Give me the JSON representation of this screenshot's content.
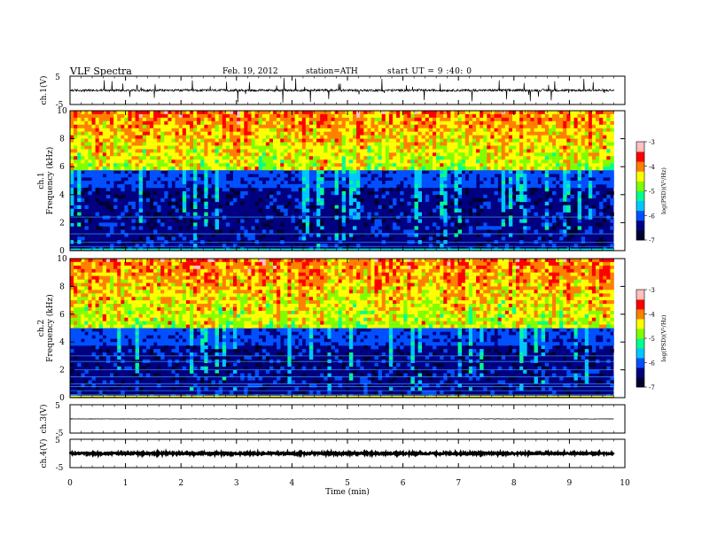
{
  "header": {
    "title": "VLF Spectra",
    "date": "Feb. 19, 2012",
    "station": "station=ATH",
    "start": "start UT = 9 :40: 0"
  },
  "colors": {
    "cmap": [
      "#000030",
      "#000080",
      "#0050ff",
      "#00c8ff",
      "#00ff90",
      "#80ff00",
      "#ffff00",
      "#ff8000",
      "#ff0000",
      "#ffc0c0"
    ],
    "trace": "#000000",
    "axis": "#000000"
  },
  "chart_data": [
    {
      "id": "ch1-waveform",
      "type": "line",
      "ylabel": "ch.1(V)",
      "ylim": [
        -5,
        5
      ],
      "yticks": [
        "5",
        "-5"
      ],
      "baseline": 0,
      "noise_amplitude": 0.4,
      "spikes": true
    },
    {
      "id": "ch1-spectrogram",
      "type": "heatmap",
      "ylabel_top": "ch.1",
      "ylabel": "Frequency (kHz)",
      "ylim": [
        0,
        10
      ],
      "yticks": [
        "0",
        "2",
        "4",
        "6",
        "8",
        "10"
      ],
      "colorbar": {
        "label": "log(PSD)(V²/Hz)",
        "ticks": [
          "-3",
          "-4",
          "-5",
          "-6",
          "-7"
        ],
        "range": [
          -7,
          -3
        ]
      },
      "profile": {
        "quiet_below_khz": 5.8,
        "active_above_khz": 5.8,
        "hum_lines_khz": [
          0.3,
          0.6,
          1.2,
          2.4
        ]
      }
    },
    {
      "id": "ch2-spectrogram",
      "type": "heatmap",
      "ylabel_top": "ch.2",
      "ylabel": "Frequency (kHz)",
      "ylim": [
        0,
        10
      ],
      "yticks": [
        "0",
        "2",
        "4",
        "6",
        "8",
        "10"
      ],
      "colorbar": {
        "label": "log(PSD)(V²/Hz)",
        "ticks": [
          "-3",
          "-4",
          "-5",
          "-6",
          "-7"
        ],
        "range": [
          -7,
          -3
        ]
      },
      "profile": {
        "quiet_below_khz": 5.0,
        "active_above_khz": 5.0,
        "hum_lines_khz": [
          0.2,
          0.5,
          0.8,
          1.0,
          1.5,
          2.0,
          2.6,
          3.0
        ]
      }
    },
    {
      "id": "ch3-waveform",
      "type": "line",
      "ylabel": "ch.3(V)",
      "ylim": [
        -5,
        5
      ],
      "yticks": [
        "5",
        "-5"
      ],
      "baseline": 0,
      "noise_amplitude": 0.08,
      "spikes": false
    },
    {
      "id": "ch4-waveform",
      "type": "line",
      "ylabel": "ch.4(V)",
      "ylim": [
        -5,
        5
      ],
      "yticks": [
        "5",
        "-5"
      ],
      "baseline": 0,
      "noise_amplitude": 0.3,
      "spikes": false
    }
  ],
  "x_axis": {
    "label": "Time (min)",
    "xlim": [
      0,
      10
    ],
    "data_end": 9.8,
    "ticks": [
      "0",
      "1",
      "2",
      "3",
      "4",
      "5",
      "6",
      "7",
      "8",
      "9",
      "10"
    ]
  }
}
